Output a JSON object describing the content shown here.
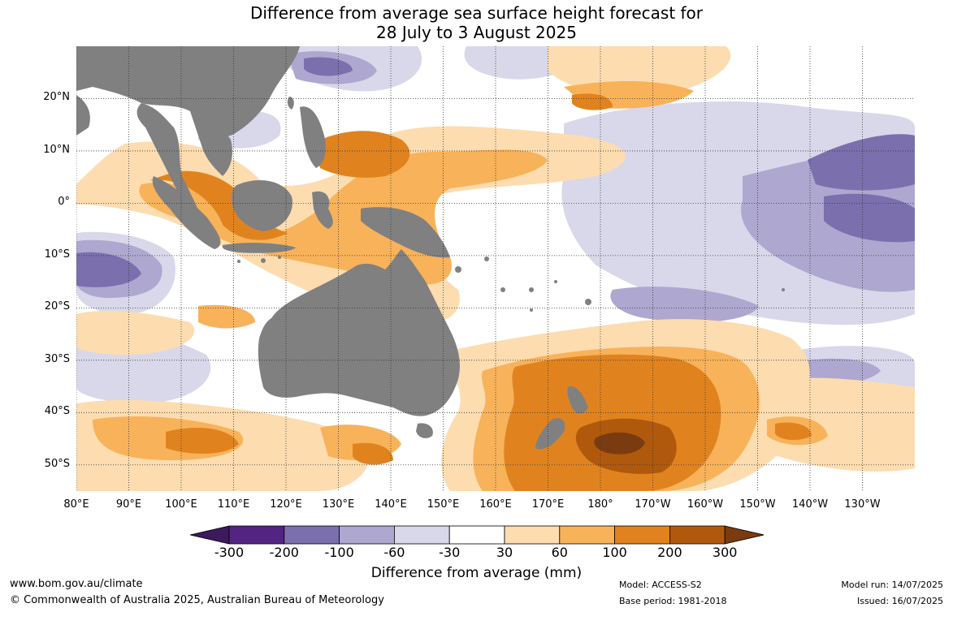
{
  "title": {
    "line1": "Difference from average sea surface height forecast for",
    "line2": "28 July to 3 August 2025"
  },
  "axes": {
    "lat_ticks": [
      "20°N",
      "10°N",
      "0°",
      "10°S",
      "20°S",
      "30°S",
      "40°S",
      "50°S"
    ],
    "lat_values": [
      20,
      10,
      0,
      -10,
      -20,
      -30,
      -40,
      -50
    ],
    "lon_ticks": [
      "80°E",
      "90°E",
      "100°E",
      "110°E",
      "120°E",
      "130°E",
      "140°E",
      "150°E",
      "160°E",
      "170°E",
      "180°",
      "170°W",
      "160°W",
      "150°W",
      "140°W",
      "130°W"
    ],
    "lon_values": [
      80,
      90,
      100,
      110,
      120,
      130,
      140,
      150,
      160,
      170,
      180,
      190,
      200,
      210,
      220,
      230
    ],
    "lon_range": [
      80,
      240
    ],
    "lat_range": [
      -55,
      30
    ],
    "grid": "dotted"
  },
  "colorbar": {
    "labels": [
      "-300",
      "-200",
      "-100",
      "-60",
      "-30",
      "30",
      "60",
      "100",
      "200",
      "300"
    ],
    "colors": [
      "#3d1a5e",
      "#532482",
      "#7c6fae",
      "#aea7cf",
      "#d8d8ea",
      "#ffffff",
      "#fddcb0",
      "#f8b25a",
      "#e0831f",
      "#b0590d",
      "#7a3b10"
    ],
    "title": "Difference from average (mm)",
    "land_color": "#808080"
  },
  "footer": {
    "website": "www.bom.gov.au/climate",
    "copyright": "© Commonwealth of Australia 2025, Australian Bureau of Meteorology",
    "model": "Model: ACCESS-S2",
    "base_period": "Base period: 1981-2018",
    "model_run": "Model run: 14/07/2025",
    "issued": "Issued: 16/07/2025"
  }
}
